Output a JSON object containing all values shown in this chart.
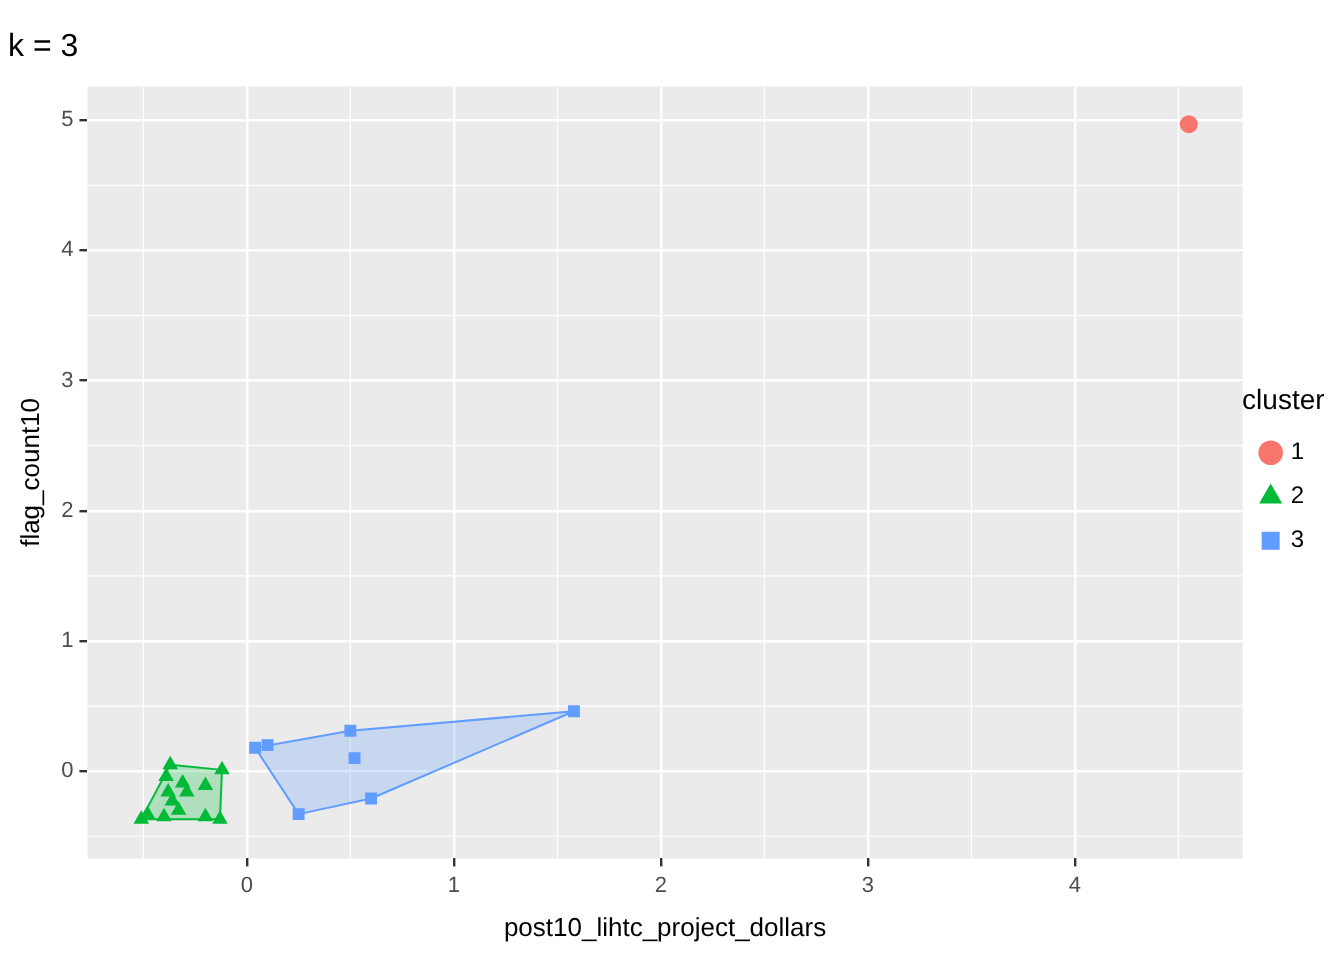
{
  "chart_data": {
    "type": "scatter",
    "title": "k = 3",
    "xlabel": "post10_lihtc_project_dollars",
    "ylabel": "flag_count10",
    "legend_title": "cluster",
    "xlim": [
      -0.77,
      4.81
    ],
    "ylim": [
      -0.67,
      5.26
    ],
    "xticks": [
      0,
      1,
      2,
      3,
      4
    ],
    "yticks": [
      0,
      1,
      2,
      3,
      4,
      5
    ],
    "grid": true,
    "legend": "right",
    "series": [
      {
        "type": "area",
        "color": "#00ba38",
        "x": [
          -0.37,
          -0.12,
          -0.13,
          -0.51,
          -0.37
        ],
        "values": [
          0.05,
          0.01,
          -0.37,
          -0.37,
          0.05
        ],
        "marker": "none"
      },
      {
        "type": "area",
        "color": "#619cff",
        "x": [
          0.04,
          0.5,
          1.58,
          0.6,
          0.25,
          0.04
        ],
        "values": [
          0.18,
          0.31,
          0.46,
          -0.21,
          -0.33,
          0.18
        ],
        "marker": "none"
      },
      {
        "name": "1",
        "color": "#f8766d",
        "marker": "circle",
        "x": [
          4.55
        ],
        "values": [
          4.97
        ]
      },
      {
        "name": "2",
        "color": "#00ba38",
        "marker": "triangle",
        "x": [
          -0.37,
          -0.12,
          -0.39,
          -0.31,
          -0.2,
          -0.38,
          -0.29,
          -0.33,
          -0.48,
          -0.51,
          -0.4,
          -0.2,
          -0.13,
          -0.36
        ],
        "values": [
          0.05,
          0.01,
          -0.04,
          -0.09,
          -0.11,
          -0.16,
          -0.16,
          -0.3,
          -0.33,
          -0.37,
          -0.35,
          -0.35,
          -0.37,
          -0.23
        ]
      },
      {
        "name": "3",
        "color": "#619cff",
        "marker": "square",
        "x": [
          0.04,
          0.1,
          0.5,
          1.58,
          0.6,
          0.25,
          0.52
        ],
        "values": [
          0.18,
          0.2,
          0.31,
          0.46,
          -0.21,
          -0.33,
          0.1
        ]
      }
    ]
  }
}
